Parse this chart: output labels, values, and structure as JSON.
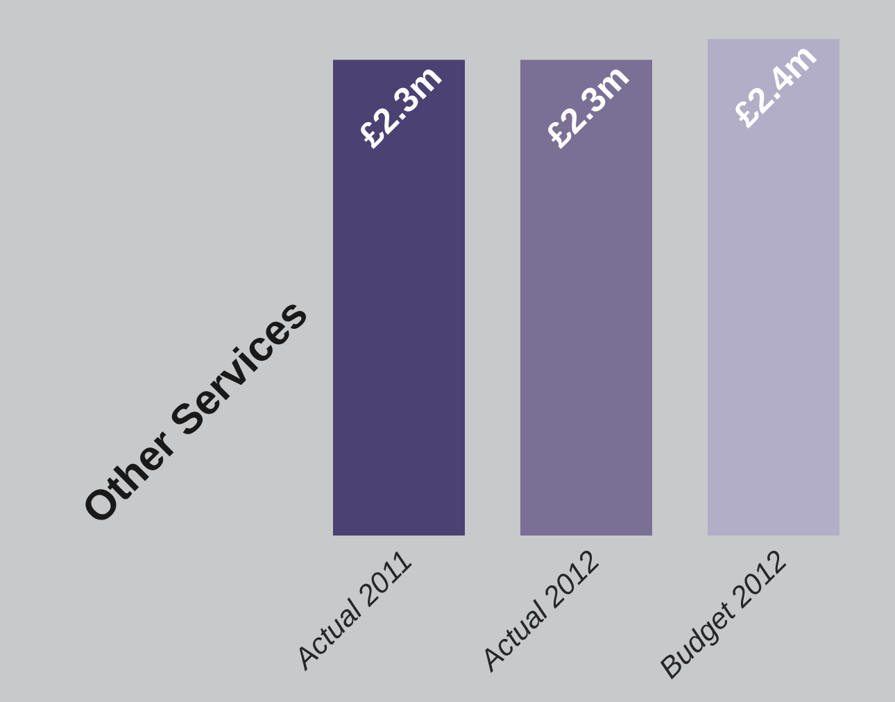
{
  "chart_data": {
    "type": "bar",
    "title": "Other Services",
    "categories": [
      "Actual 2011",
      "Actual 2012",
      "Budget 2012"
    ],
    "values": [
      2.3,
      2.3,
      2.4
    ],
    "value_labels": [
      "£2.3m",
      "£2.3m",
      "£2.4m"
    ],
    "colors": [
      "#4b4172",
      "#7a7096",
      "#b2aec8"
    ]
  }
}
